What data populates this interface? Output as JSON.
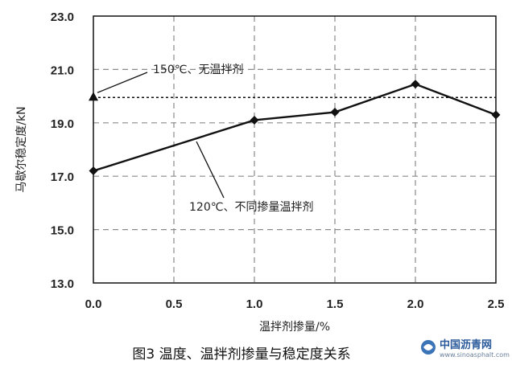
{
  "chart_data": {
    "type": "line",
    "xlabel": "温拌剂掺量/%",
    "ylabel": "马歇尔稳定度/kN",
    "xlim": [
      0.0,
      2.5
    ],
    "ylim": [
      13.0,
      23.0
    ],
    "x_ticks": [
      "0.0",
      "0.5",
      "1.0",
      "1.5",
      "2.0",
      "2.5"
    ],
    "y_ticks": [
      "13.0",
      "15.0",
      "17.0",
      "19.0",
      "21.0",
      "23.0"
    ],
    "grid": true,
    "series": [
      {
        "name": "120℃、不同掺量温拌剂",
        "x": [
          0.0,
          1.0,
          1.5,
          2.0,
          2.5
        ],
        "y": [
          17.2,
          19.1,
          19.4,
          20.45,
          19.3
        ],
        "marker": "diamond",
        "line_style": "solid"
      },
      {
        "name": "150℃、无温拌剂",
        "x": [
          0.0
        ],
        "y": [
          19.95
        ],
        "marker": "triangle",
        "line_style": "dotted-horizontal"
      }
    ],
    "annotations": [
      {
        "text": "150℃、无温拌剂"
      },
      {
        "text": "120℃、不同掺量温拌剂"
      }
    ],
    "caption": "图3   温度、温拌剂掺量与稳定度关系"
  },
  "watermark": {
    "main": "中国沥青网",
    "sub": "www.sinoasphalt.com"
  }
}
